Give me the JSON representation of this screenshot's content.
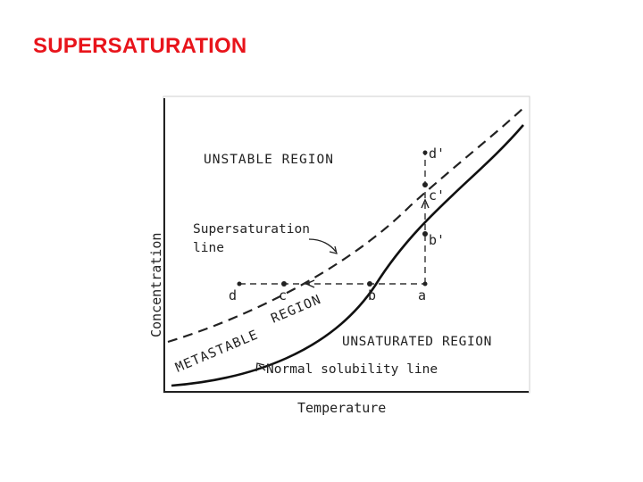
{
  "slide": {
    "title": "SUPERSATURATION"
  },
  "diagram": {
    "ylabel": "Concentration",
    "xlabel": "Temperature",
    "regions": {
      "unstable": "UNSTABLE REGION",
      "metastable_1": "METASTABLE",
      "metastable_2": "REGION",
      "unsaturated": "UNSATURATED REGION"
    },
    "curves": {
      "supersaturation_1": "Supersaturation",
      "supersaturation_2": "line",
      "solubility": "Normal solubility line"
    },
    "points": {
      "a": "a",
      "b": "b",
      "c": "c",
      "d": "d",
      "b_prime": "b'",
      "c_prime": "c'",
      "d_prime": "d'"
    },
    "colors": {
      "ink": "#222222",
      "title": "#e8141b"
    }
  }
}
